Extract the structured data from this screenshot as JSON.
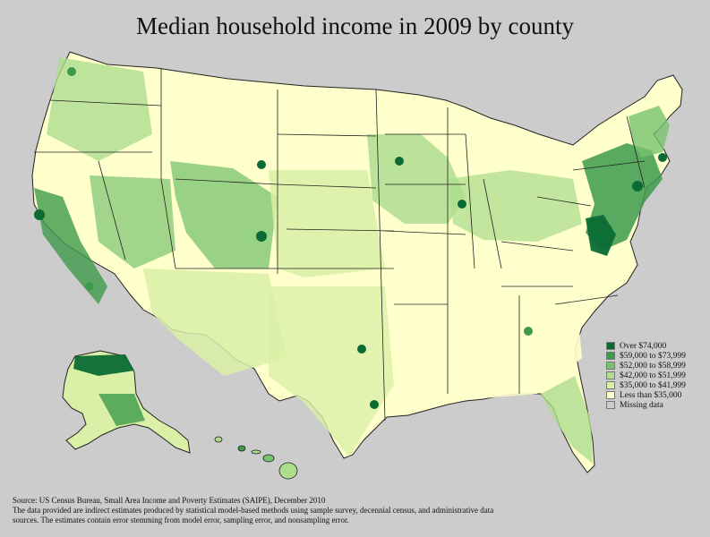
{
  "title": "Median household income in 2009 by county",
  "legend": [
    {
      "label": "Over $74,000",
      "color": "#0b6b34"
    },
    {
      "label": "$59,000 to $73,999",
      "color": "#3d9a4c"
    },
    {
      "label": "$52,000 to $58,999",
      "color": "#78c36d"
    },
    {
      "label": "$42,000 to $51,999",
      "color": "#aedd8e"
    },
    {
      "label": "$35,000 to $41,999",
      "color": "#d9f0a6"
    },
    {
      "label": "Less than $35,000",
      "color": "#ffffcc"
    },
    {
      "label": "Missing data",
      "color": "#cccccc"
    }
  ],
  "source": {
    "line1": "Source: US Census Bureau, Small Area Income and Poverty Estimates (SAIPE), December 2010",
    "line2": "The data provided are indirect estimates produced by statistical model-based methods using sample survey, decennial census, and administrative data",
    "line3": "sources. The estimates contain error stemming from model error, sampling error, and nonsampling error."
  },
  "colors": {
    "background": "#cccccc",
    "border": "#222222"
  }
}
